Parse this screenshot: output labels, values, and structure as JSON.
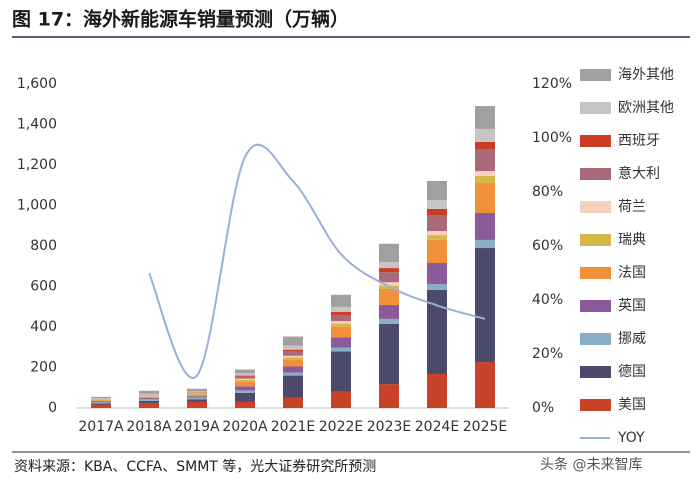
{
  "chart_data": {
    "type": "bar-line",
    "title": "图 17：海外新能源车销量预测（万辆）",
    "source": "资料来源：KBA、CCFA、SMMT 等，光大证券研究所预测",
    "watermark": "头条 @未来智库",
    "categories": [
      "2017A",
      "2018A",
      "2019A",
      "2020A",
      "2021E",
      "2022E",
      "2023E",
      "2024E",
      "2025E"
    ],
    "series": [
      {
        "name": "美国",
        "color": "#c9432a",
        "values": [
          17,
          25,
          30,
          30,
          50,
          80,
          118,
          168,
          227
        ]
      },
      {
        "name": "德国",
        "color": "#4b4a6b",
        "values": [
          6,
          10,
          12,
          45,
          110,
          200,
          297,
          415,
          563
        ]
      },
      {
        "name": "挪威",
        "color": "#8aaec6",
        "values": [
          6,
          8,
          10,
          12,
          15,
          18,
          25,
          29,
          40
        ]
      },
      {
        "name": "英国",
        "color": "#8a5a9b",
        "values": [
          5,
          6,
          6,
          20,
          30,
          50,
          69,
          104,
          133
        ]
      },
      {
        "name": "法国",
        "color": "#f0913a",
        "values": [
          4,
          6,
          8,
          25,
          35,
          55,
          79,
          114,
          148
        ]
      },
      {
        "name": "瑞典",
        "color": "#d4b84a",
        "values": [
          2,
          3,
          3,
          8,
          10,
          14,
          18,
          24,
          35
        ]
      },
      {
        "name": "荷兰",
        "color": "#f7cfc0",
        "values": [
          1,
          2,
          3,
          5,
          8,
          12,
          15,
          20,
          24
        ]
      },
      {
        "name": "意大利",
        "color": "#a86a78",
        "values": [
          1,
          1,
          2,
          10,
          20,
          30,
          50,
          79,
          109
        ]
      },
      {
        "name": "西班牙",
        "color": "#cc3b24",
        "values": [
          1,
          1,
          2,
          5,
          10,
          15,
          20,
          30,
          35
        ]
      },
      {
        "name": "欧洲其他",
        "color": "#c6c6c6",
        "values": [
          5,
          8,
          6,
          12,
          20,
          25,
          30,
          44,
          64
        ]
      },
      {
        "name": "海外其他",
        "color": "#a0a0a0",
        "values": [
          7,
          15,
          13,
          18,
          45,
          60,
          90,
          94,
          113
        ]
      },
      {
        "name": "YOY",
        "color": "#9ab0d6",
        "axis": "y2",
        "type": "line",
        "values": [
          null,
          50,
          12,
          93,
          84,
          57,
          45,
          38,
          33
        ]
      }
    ],
    "ylim": [
      0,
      1600
    ],
    "yticks": [
      0,
      200,
      400,
      600,
      800,
      {
        "value": 1000,
        "label": "1,000"
      },
      {
        "value": 1200,
        "label": "1,200"
      },
      {
        "value": 1400,
        "label": "1,400"
      },
      {
        "value": 1600,
        "label": "1,600"
      }
    ],
    "y2lim": [
      0,
      120
    ],
    "y2ticks": [
      {
        "value": 0,
        "label": "0%"
      },
      {
        "value": 20,
        "label": "20%"
      },
      {
        "value": 40,
        "label": "40%"
      },
      {
        "value": 60,
        "label": "60%"
      },
      {
        "value": 80,
        "label": "80%"
      },
      {
        "value": 100,
        "label": "100%"
      },
      {
        "value": 120,
        "label": "120%"
      }
    ],
    "grid": false
  }
}
